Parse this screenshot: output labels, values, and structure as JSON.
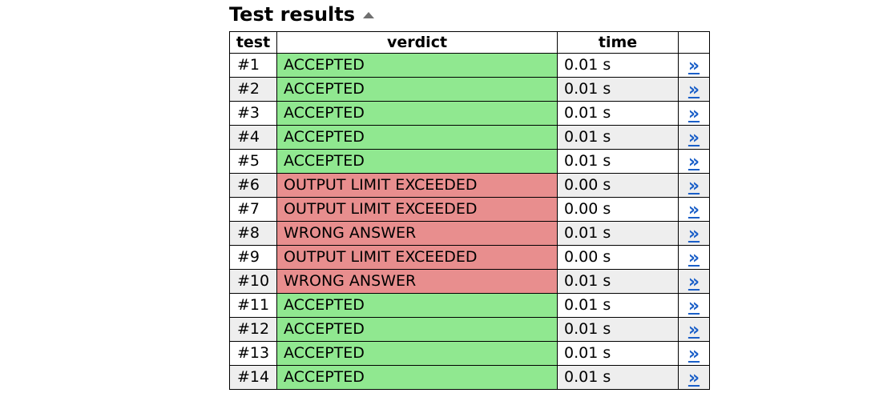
{
  "heading": {
    "title": "Test results",
    "collapse_icon": "caret-up-icon"
  },
  "table": {
    "columns": [
      "test",
      "verdict",
      "time",
      ""
    ],
    "link_glyph": "»",
    "rows": [
      {
        "test": "#1",
        "verdict": "ACCEPTED",
        "status": "ok",
        "time": "0.01 s"
      },
      {
        "test": "#2",
        "verdict": "ACCEPTED",
        "status": "ok",
        "time": "0.01 s"
      },
      {
        "test": "#3",
        "verdict": "ACCEPTED",
        "status": "ok",
        "time": "0.01 s"
      },
      {
        "test": "#4",
        "verdict": "ACCEPTED",
        "status": "ok",
        "time": "0.01 s"
      },
      {
        "test": "#5",
        "verdict": "ACCEPTED",
        "status": "ok",
        "time": "0.01 s"
      },
      {
        "test": "#6",
        "verdict": "OUTPUT LIMIT EXCEEDED",
        "status": "bad",
        "time": "0.00 s"
      },
      {
        "test": "#7",
        "verdict": "OUTPUT LIMIT EXCEEDED",
        "status": "bad",
        "time": "0.00 s"
      },
      {
        "test": "#8",
        "verdict": "WRONG ANSWER",
        "status": "bad",
        "time": "0.01 s"
      },
      {
        "test": "#9",
        "verdict": "OUTPUT LIMIT EXCEEDED",
        "status": "bad",
        "time": "0.00 s"
      },
      {
        "test": "#10",
        "verdict": "WRONG ANSWER",
        "status": "bad",
        "time": "0.01 s"
      },
      {
        "test": "#11",
        "verdict": "ACCEPTED",
        "status": "ok",
        "time": "0.01 s"
      },
      {
        "test": "#12",
        "verdict": "ACCEPTED",
        "status": "ok",
        "time": "0.01 s"
      },
      {
        "test": "#13",
        "verdict": "ACCEPTED",
        "status": "ok",
        "time": "0.01 s"
      },
      {
        "test": "#14",
        "verdict": "ACCEPTED",
        "status": "ok",
        "time": "0.01 s"
      }
    ]
  },
  "colors": {
    "accepted": "#90e890",
    "failed": "#e88e8e",
    "link": "#1a5fc8",
    "alt_row": "#eeeeee"
  }
}
